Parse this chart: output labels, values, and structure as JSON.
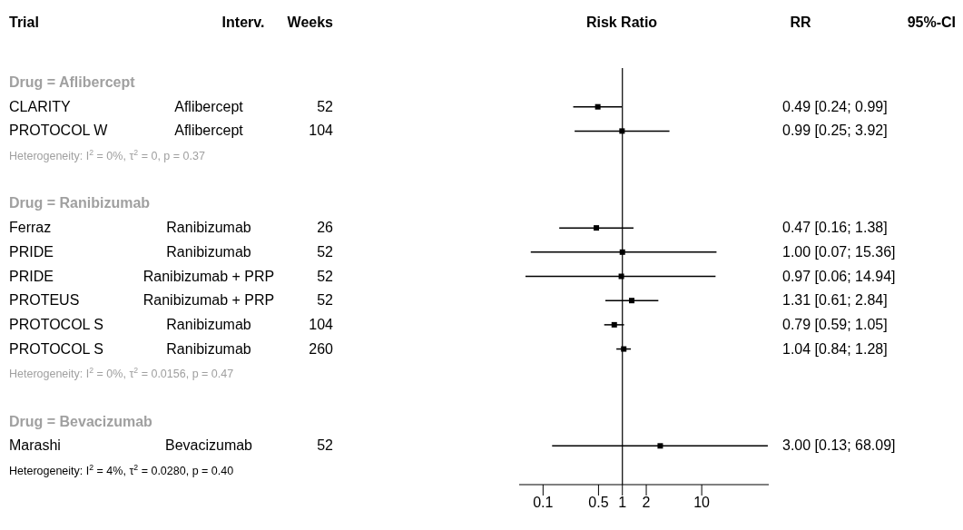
{
  "chart_data": {
    "type": "scatter",
    "orientation": "horizontal",
    "xlabel": "Risk Ratio",
    "tick_labels": "x",
    "categories": [
      null,
      null,
      null,
      null,
      null,
      null,
      null,
      null,
      null,
      null,
      null,
      null,
      null,
      null,
      null
    ],
    "values": [
      null,
      0.49,
      0.99,
      null,
      null,
      0.47,
      1.0,
      0.97,
      1.31,
      0.79,
      1.04,
      null,
      null,
      3.0,
      null
    ],
    "errors": [
      null,
      [
        0.24,
        0.99
      ],
      [
        0.25,
        3.92
      ],
      null,
      null,
      [
        0.16,
        1.38
      ],
      [
        0.07,
        15.36
      ],
      [
        0.06,
        14.94
      ],
      [
        0.61,
        2.84
      ],
      [
        0.59,
        1.05
      ],
      [
        0.84,
        1.28
      ],
      null,
      null,
      [
        0.13,
        68.09
      ],
      null
    ],
    "color": "#000000",
    "marker": "square",
    "log": "x",
    "xlim": [
      0.05,
      70
    ],
    "xticks": [
      0.1,
      0.5,
      1,
      2,
      10
    ],
    "ref_lines": [
      {
        "axis": "x",
        "value": 1,
        "color": "#000000"
      }
    ],
    "annotations": [
      "Trial",
      "Interv.",
      "Weeks",
      "RR",
      "95%-CI",
      "Drug = Aflibercept",
      "CLARITY",
      "Aflibercept",
      "52",
      "0.49 [0.24; 0.99]",
      "PROTOCOL W",
      "Aflibercept",
      "104",
      "0.99 [0.25; 3.92]",
      "Heterogeneity: I$^{2}$ = 0%, τ$^{2}$ = 0, p = 0.37",
      "Drug = Ranibizumab",
      "Ferraz",
      "Ranibizumab",
      "26",
      "0.47 [0.16; 1.38]",
      "PRIDE",
      "Ranibizumab",
      "52",
      "1.00 [0.07; 15.36]",
      "PRIDE",
      "Ranibizumab + PRP",
      "52",
      "0.97 [0.06; 14.94]",
      "PROTEUS",
      "Ranibizumab + PRP",
      "52",
      "1.31 [0.61; 2.84]",
      "PROTOCOL S",
      "Ranibizumab",
      "104",
      "0.79 [0.59; 1.05]",
      "PROTOCOL S",
      "Ranibizumab",
      "260",
      "1.04 [0.84; 1.28]",
      "Heterogeneity: I$^{2}$ = 0%, τ$^{2}$ = 0.0156, p = 0.47",
      "Drug = Bevacizumab",
      "Marashi",
      "Bevacizumab",
      "52",
      "3.00 [0.13; 68.09]",
      "Heterogeneity: I$^{2}$ = 4%, τ$^{2}$ = 0.0280, p = 0.40"
    ]
  }
}
